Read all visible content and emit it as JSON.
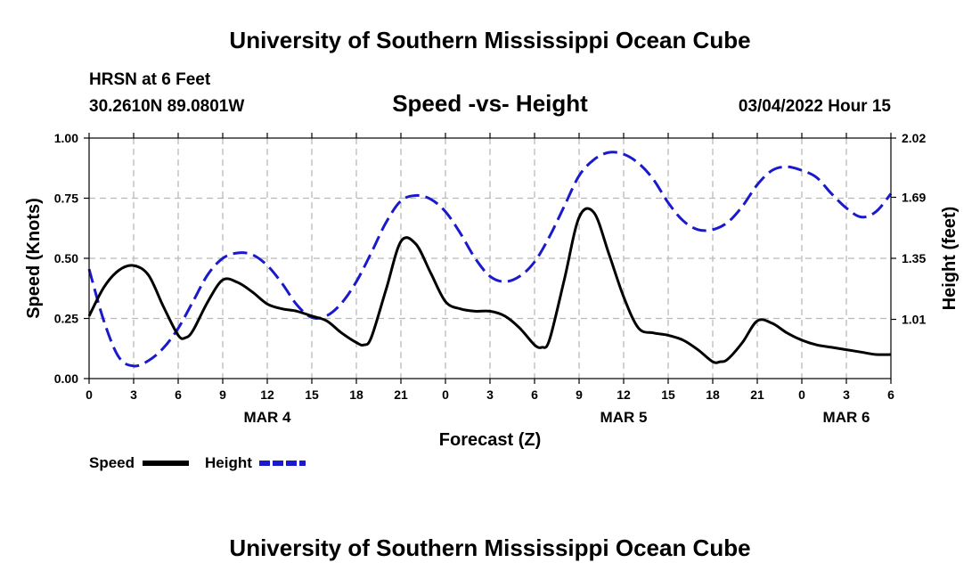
{
  "header": {
    "title_top": "University of Southern Mississippi Ocean Cube",
    "title_bottom": "University of Southern Mississippi Ocean Cube",
    "station": "HRSN at 6 Feet",
    "coords": "30.2610N  89.0801W",
    "chart_title": "Speed -vs- Height",
    "issued": "03/04/2022 Hour 15"
  },
  "chart_data": {
    "type": "line",
    "title": "Speed -vs- Height",
    "xlabel": "Forecast (Z)",
    "ylabel": "Speed (Knots)",
    "y2label": "Height (feet)",
    "xlim": [
      0,
      54
    ],
    "ylim": [
      0,
      1
    ],
    "y2lim": [
      0.68,
      2.02
    ],
    "x_ticks": [
      0,
      3,
      6,
      9,
      12,
      15,
      18,
      21,
      24,
      27,
      30,
      33,
      36,
      39,
      42,
      45,
      48,
      51,
      54
    ],
    "x_tick_labels": [
      "0",
      "3",
      "6",
      "9",
      "12",
      "15",
      "18",
      "21",
      "0",
      "3",
      "6",
      "9",
      "12",
      "15",
      "18",
      "21",
      "0",
      "3",
      "6"
    ],
    "y_ticks": [
      0,
      0.25,
      0.5,
      0.75,
      1.0
    ],
    "y_tick_labels": [
      "0.00",
      "0.25",
      "0.50",
      "0.75",
      "1.00"
    ],
    "y2_ticks": [
      1.01,
      1.35,
      1.69,
      2.02
    ],
    "y2_tick_labels": [
      "1.01",
      "1.35",
      "1.69",
      "2.02"
    ],
    "date_labels": [
      {
        "x": 12,
        "label": "MAR 4"
      },
      {
        "x": 36,
        "label": "MAR 5"
      },
      {
        "x": 51,
        "label": "MAR 6"
      }
    ],
    "grid": true,
    "legend_position": "bottom-left",
    "series": [
      {
        "name": "Speed",
        "axis": "left",
        "color": "#000000",
        "style": "solid",
        "x": [
          0,
          1,
          2,
          3,
          4,
          5,
          6,
          6.5,
          7,
          8,
          9,
          10,
          11,
          12,
          13,
          14,
          15,
          16,
          17,
          18,
          18.5,
          19,
          20,
          21,
          22,
          23,
          24,
          25,
          26,
          27,
          28,
          29,
          30,
          30.5,
          31,
          32,
          33,
          34,
          35,
          36,
          37,
          38,
          39,
          40,
          41,
          42,
          42.5,
          43,
          44,
          45,
          46,
          47,
          48,
          49,
          50,
          51,
          52,
          53,
          54
        ],
        "values": [
          0.26,
          0.38,
          0.45,
          0.47,
          0.43,
          0.3,
          0.18,
          0.17,
          0.2,
          0.32,
          0.41,
          0.4,
          0.36,
          0.31,
          0.29,
          0.28,
          0.26,
          0.24,
          0.19,
          0.15,
          0.14,
          0.17,
          0.37,
          0.57,
          0.56,
          0.44,
          0.32,
          0.29,
          0.28,
          0.28,
          0.26,
          0.21,
          0.14,
          0.13,
          0.16,
          0.41,
          0.67,
          0.69,
          0.52,
          0.34,
          0.21,
          0.19,
          0.18,
          0.16,
          0.12,
          0.07,
          0.07,
          0.08,
          0.15,
          0.24,
          0.23,
          0.19,
          0.16,
          0.14,
          0.13,
          0.12,
          0.11,
          0.1,
          0.1
        ]
      },
      {
        "name": "Height",
        "axis": "right",
        "color": "#1a1acc",
        "style": "dashed",
        "x": [
          0,
          1,
          2,
          3,
          4,
          5,
          6,
          7,
          8,
          9,
          10,
          11,
          12,
          13,
          14,
          15,
          16,
          17,
          18,
          19,
          20,
          21,
          22,
          23,
          24,
          25,
          26,
          27,
          28,
          29,
          30,
          31,
          32,
          33,
          34,
          35,
          36,
          37,
          38,
          39,
          40,
          41,
          42,
          43,
          44,
          45,
          46,
          47,
          48,
          49,
          50,
          51,
          52,
          53,
          54
        ],
        "values": [
          1.29,
          1.0,
          0.8,
          0.75,
          0.78,
          0.85,
          0.96,
          1.11,
          1.26,
          1.35,
          1.38,
          1.37,
          1.31,
          1.21,
          1.09,
          1.02,
          1.03,
          1.1,
          1.22,
          1.38,
          1.55,
          1.67,
          1.7,
          1.68,
          1.61,
          1.49,
          1.35,
          1.25,
          1.22,
          1.25,
          1.33,
          1.47,
          1.64,
          1.81,
          1.9,
          1.94,
          1.93,
          1.88,
          1.79,
          1.66,
          1.56,
          1.51,
          1.51,
          1.55,
          1.64,
          1.76,
          1.84,
          1.86,
          1.84,
          1.8,
          1.71,
          1.63,
          1.58,
          1.61,
          1.71
        ]
      }
    ]
  }
}
